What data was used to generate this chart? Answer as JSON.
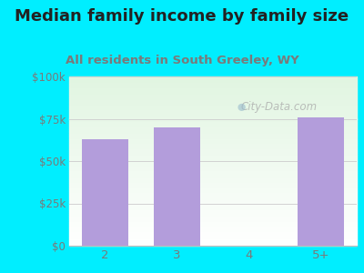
{
  "title": "Median family income by family size",
  "subtitle": "All residents in South Greeley, WY",
  "categories": [
    "2",
    "3",
    "4",
    "5+"
  ],
  "values": [
    63000,
    70000,
    0,
    76000
  ],
  "bar_color": "#b39ddb",
  "bg_color": "#00eeff",
  "yticks": [
    0,
    25000,
    50000,
    75000,
    100000
  ],
  "ytick_labels": [
    "$0",
    "$25k",
    "$50k",
    "$75k",
    "$100k"
  ],
  "ylim": [
    0,
    100000
  ],
  "title_fontsize": 13,
  "subtitle_fontsize": 9.5,
  "title_color": "#222222",
  "subtitle_color": "#7a7a7a",
  "tick_label_color": "#7a7a7a",
  "watermark": "City-Data.com",
  "grid_color": "#cccccc"
}
